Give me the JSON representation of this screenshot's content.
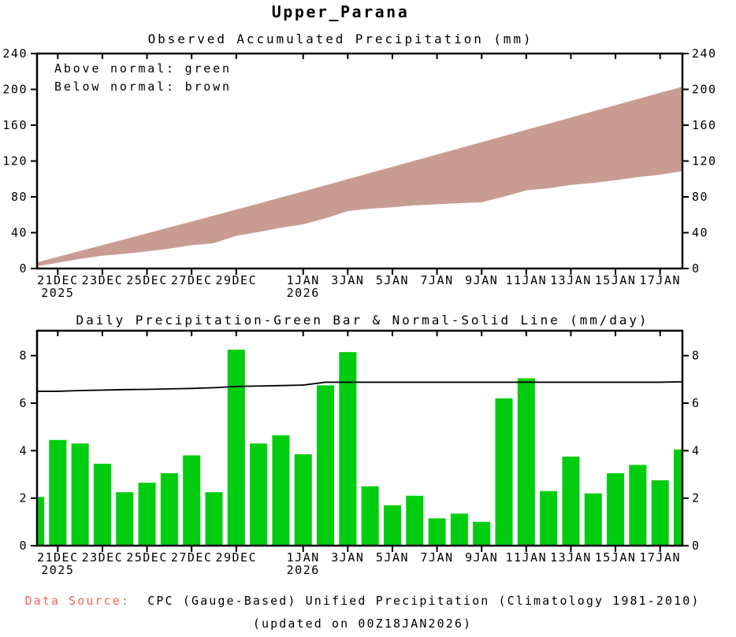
{
  "title": "Upper_Parana",
  "footer": {
    "data_source_label": "Data Source:",
    "data_source_text": "CPC (Gauge-Based) Unified Precipitation (Climatology 1981-2010)",
    "updated_text": "(updated on 00Z18JAN2026)"
  },
  "colors": {
    "band_brown": "#c89c92",
    "bar_green": "#00cd0f",
    "line_black": "#000000",
    "source_red": "#f8615d"
  },
  "chart_data": [
    {
      "id": "accumulated",
      "type": "area",
      "title": "Observed Accumulated Precipitation (mm)",
      "annotations": [
        "Above normal: green",
        "Below normal: brown"
      ],
      "legend_position": "top-left",
      "grid": false,
      "ylim": [
        0,
        240
      ],
      "yticks": [
        0,
        40,
        80,
        120,
        160,
        200,
        240
      ],
      "x": [
        "20DEC",
        "21DEC",
        "22DEC",
        "23DEC",
        "24DEC",
        "25DEC",
        "26DEC",
        "27DEC",
        "28DEC",
        "29DEC",
        "30DEC",
        "31DEC",
        "1JAN",
        "2JAN",
        "3JAN",
        "4JAN",
        "5JAN",
        "6JAN",
        "7JAN",
        "8JAN",
        "9JAN",
        "10JAN",
        "11JAN",
        "12JAN",
        "13JAN",
        "14JAN",
        "15JAN",
        "16JAN",
        "17JAN",
        "18JAN"
      ],
      "x_ticks": [
        {
          "i": 1,
          "label": "21DEC",
          "year": "2025"
        },
        {
          "i": 3,
          "label": "23DEC"
        },
        {
          "i": 5,
          "label": "25DEC"
        },
        {
          "i": 7,
          "label": "27DEC"
        },
        {
          "i": 9,
          "label": "29DEC"
        },
        {
          "i": 12,
          "label": "1JAN",
          "year": "2026"
        },
        {
          "i": 14,
          "label": "3JAN"
        },
        {
          "i": 16,
          "label": "5JAN"
        },
        {
          "i": 18,
          "label": "7JAN"
        },
        {
          "i": 20,
          "label": "9JAN"
        },
        {
          "i": 22,
          "label": "11JAN"
        },
        {
          "i": 24,
          "label": "13JAN"
        },
        {
          "i": 26,
          "label": "15JAN"
        },
        {
          "i": 28,
          "label": "17JAN"
        }
      ],
      "series": [
        {
          "name": "observed accumulated (mm)",
          "values": [
            2.05,
            6.5,
            10.8,
            14.25,
            16.5,
            19.15,
            22.2,
            26.0,
            28.25,
            36.5,
            40.8,
            45.45,
            49.3,
            56.05,
            64.2,
            66.7,
            68.4,
            70.5,
            71.65,
            73.0,
            74.0,
            80.2,
            87.25,
            89.55,
            93.3,
            95.5,
            98.55,
            101.95,
            104.7,
            108.75
          ]
        },
        {
          "name": "normal accumulated (mm)",
          "values": [
            6.5,
            13.0,
            19.53,
            26.08,
            32.65,
            39.23,
            45.83,
            52.45,
            59.1,
            65.8,
            72.52,
            79.26,
            86.02,
            92.9,
            99.78,
            106.66,
            113.54,
            120.42,
            127.3,
            134.18,
            141.06,
            147.94,
            154.82,
            161.7,
            168.58,
            175.46,
            182.34,
            189.22,
            196.1,
            203.0
          ]
        }
      ],
      "band_note": "brown band fills between observed and normal accumulation (observed below normal)"
    },
    {
      "id": "daily",
      "type": "bar",
      "title": "Daily Precipitation-Green Bar & Normal-Solid Line (mm/day)",
      "grid": false,
      "ylim": [
        0,
        9.05
      ],
      "yticks": [
        0,
        2,
        4,
        6,
        8
      ],
      "x": [
        "20DEC",
        "21DEC",
        "22DEC",
        "23DEC",
        "24DEC",
        "25DEC",
        "26DEC",
        "27DEC",
        "28DEC",
        "29DEC",
        "30DEC",
        "31DEC",
        "1JAN",
        "2JAN",
        "3JAN",
        "4JAN",
        "5JAN",
        "6JAN",
        "7JAN",
        "8JAN",
        "9JAN",
        "10JAN",
        "11JAN",
        "12JAN",
        "13JAN",
        "14JAN",
        "15JAN",
        "16JAN",
        "17JAN",
        "18JAN"
      ],
      "x_ticks": [
        {
          "i": 1,
          "label": "21DEC",
          "year": "2025"
        },
        {
          "i": 3,
          "label": "23DEC"
        },
        {
          "i": 5,
          "label": "25DEC"
        },
        {
          "i": 7,
          "label": "27DEC"
        },
        {
          "i": 9,
          "label": "29DEC"
        },
        {
          "i": 12,
          "label": "1JAN",
          "year": "2026"
        },
        {
          "i": 14,
          "label": "3JAN"
        },
        {
          "i": 16,
          "label": "5JAN"
        },
        {
          "i": 18,
          "label": "7JAN"
        },
        {
          "i": 20,
          "label": "9JAN"
        },
        {
          "i": 22,
          "label": "11JAN"
        },
        {
          "i": 24,
          "label": "13JAN"
        },
        {
          "i": 26,
          "label": "15JAN"
        },
        {
          "i": 28,
          "label": "17JAN"
        }
      ],
      "series": [
        {
          "name": "daily precipitation (mm/day)",
          "type": "bar",
          "values": [
            2.05,
            4.45,
            4.3,
            3.45,
            2.25,
            2.65,
            3.05,
            3.8,
            2.25,
            8.25,
            4.3,
            4.65,
            3.85,
            6.75,
            8.15,
            2.5,
            1.7,
            2.1,
            1.15,
            1.35,
            1.0,
            6.2,
            7.05,
            2.3,
            3.75,
            2.2,
            3.05,
            3.4,
            2.75,
            4.05
          ]
        },
        {
          "name": "normal (mm/day)",
          "type": "line",
          "values": [
            6.5,
            6.5,
            6.53,
            6.55,
            6.57,
            6.58,
            6.6,
            6.62,
            6.65,
            6.7,
            6.72,
            6.74,
            6.76,
            6.88,
            6.88,
            6.88,
            6.88,
            6.88,
            6.88,
            6.88,
            6.88,
            6.88,
            6.88,
            6.88,
            6.88,
            6.88,
            6.88,
            6.88,
            6.88,
            6.9
          ]
        }
      ]
    }
  ]
}
